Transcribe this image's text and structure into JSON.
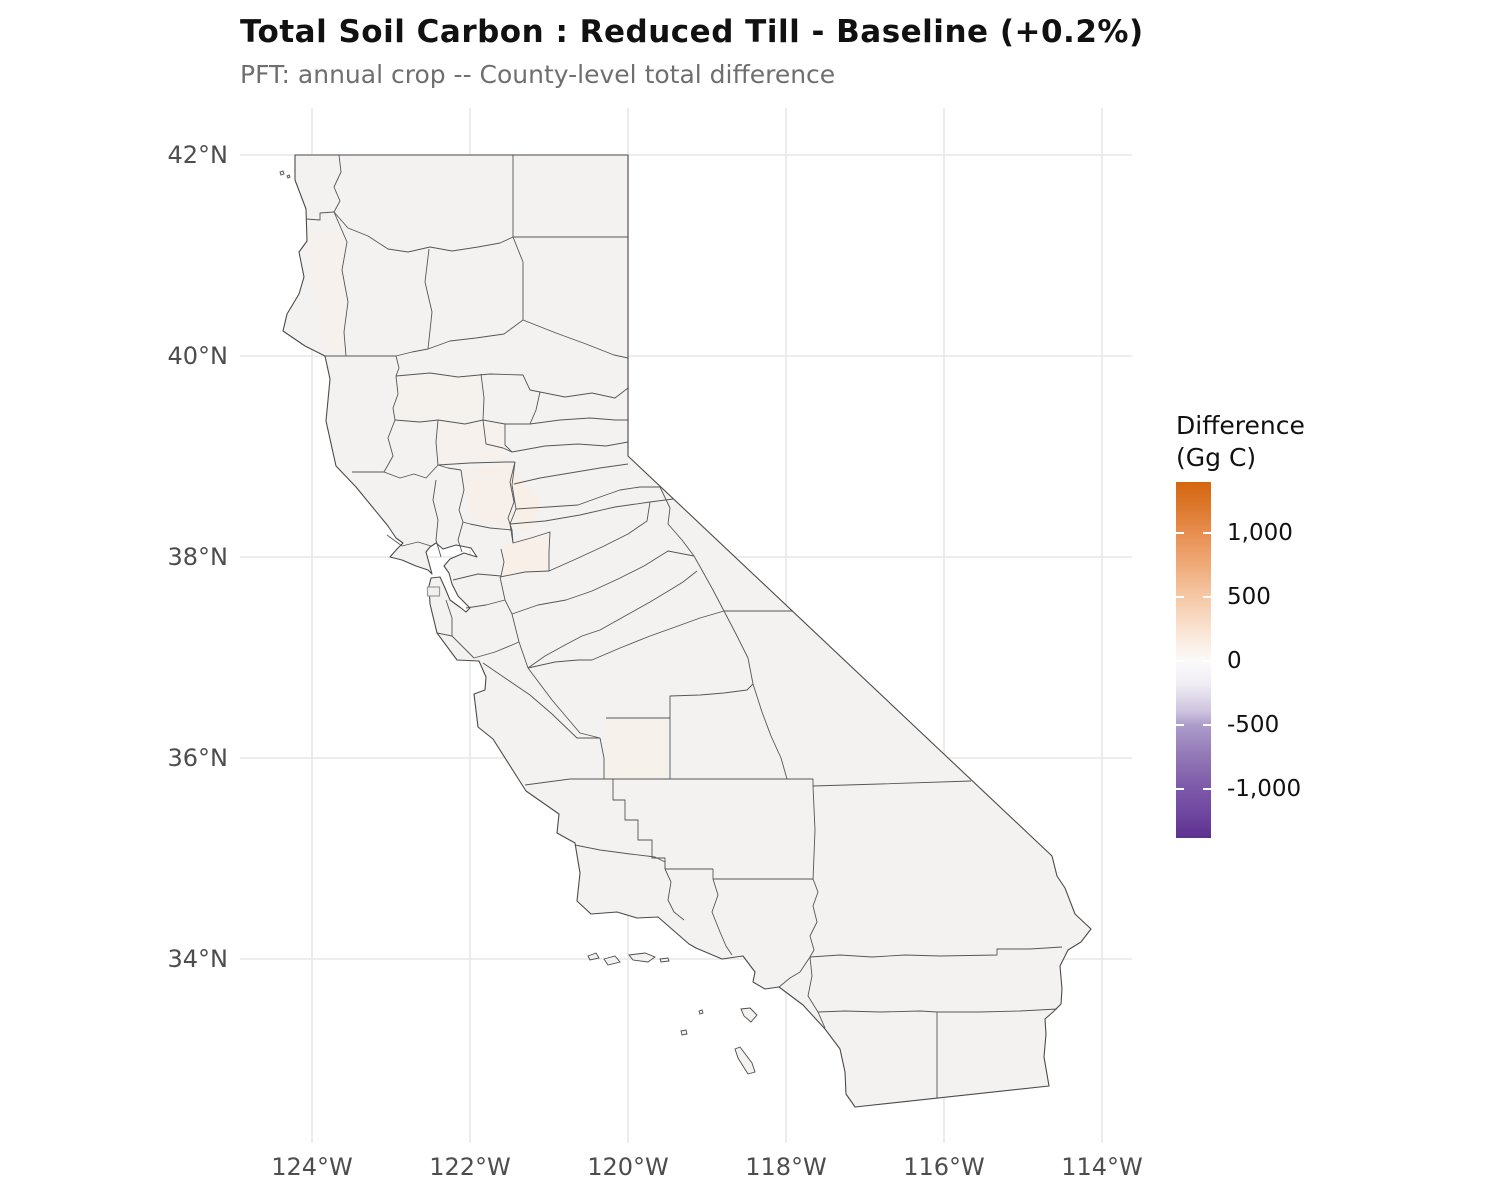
{
  "title": "Total Soil Carbon : Reduced Till - Baseline  (+0.2%)",
  "subtitle": "PFT: annual crop  -- County-level total difference",
  "x_axis": {
    "ticks": [
      "124°W",
      "122°W",
      "120°W",
      "118°W",
      "116°W",
      "114°W"
    ]
  },
  "y_axis": {
    "ticks": [
      "42°N",
      "40°N",
      "38°N",
      "36°N",
      "34°N"
    ]
  },
  "legend": {
    "title_line1": "Difference",
    "title_line2": "(Gg C)",
    "tick_labels": [
      "1,000",
      "500",
      "0",
      "-500",
      "-1,000"
    ],
    "scale_max_color": "#D4660E",
    "scale_mid_color": "#FBFAF9",
    "scale_min_color": "#5D3190"
  },
  "map": {
    "region": "California county choropleth",
    "county_fill": "#f4f2f0",
    "border_color": "#565656",
    "state_border_color": "#4b4b4b",
    "gridline_color": "#e7e7e7",
    "background": "#ffffff",
    "tint_fill_warm": "#f8efe8",
    "tint_fill_soft": "#f6f1ec"
  }
}
